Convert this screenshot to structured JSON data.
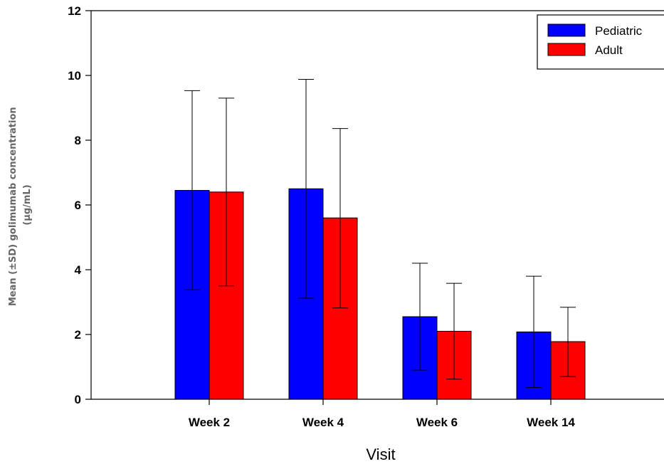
{
  "chart_data": {
    "type": "bar",
    "categories": [
      "Week 2",
      "Week 4",
      "Week 6",
      "Week 14"
    ],
    "series": [
      {
        "name": "Pediatric",
        "color": "#0000ff",
        "values": [
          6.45,
          6.5,
          2.55,
          2.08
        ],
        "error_low": [
          3.38,
          3.12,
          0.9,
          0.36
        ],
        "error_high": [
          9.53,
          9.88,
          4.2,
          3.8
        ]
      },
      {
        "name": "Adult",
        "color": "#ff0000",
        "values": [
          6.4,
          5.6,
          2.1,
          1.78
        ],
        "error_low": [
          3.5,
          2.82,
          0.62,
          0.7
        ],
        "error_high": [
          9.3,
          8.36,
          3.58,
          2.84
        ]
      }
    ],
    "ylim": [
      0,
      12
    ],
    "yticks": [
      0,
      2,
      4,
      6,
      8,
      10,
      12
    ],
    "xlabel": "Visit",
    "ylabel": [
      "Mean (±SD) golimumab concentration",
      "(µg/mL)"
    ],
    "legend_position": "top-right",
    "grid": false
  }
}
